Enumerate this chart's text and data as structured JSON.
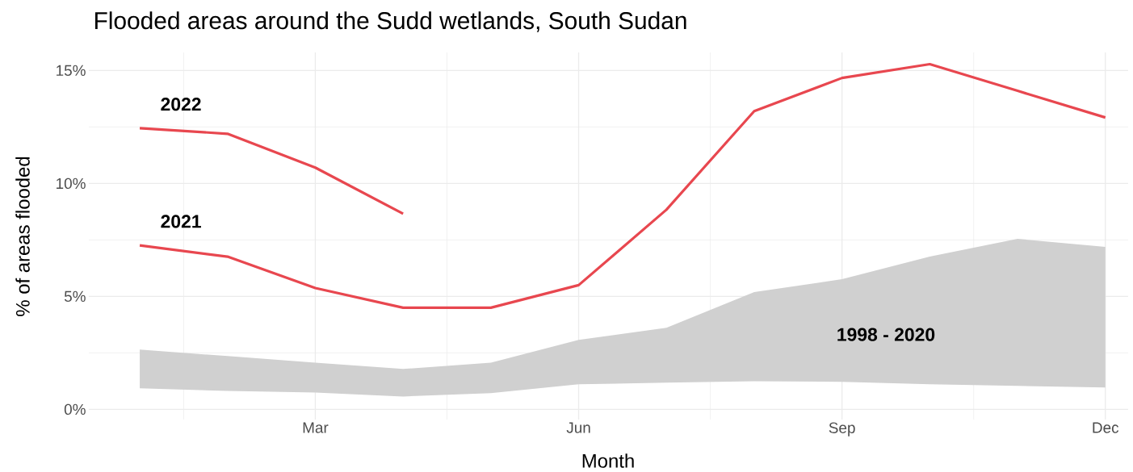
{
  "chart_data": {
    "type": "line",
    "title": "Flooded areas around the Sudd wetlands, South Sudan",
    "xlabel": "Month",
    "ylabel": "% of areas flooded",
    "categories": [
      null,
      null,
      "Mar",
      null,
      null,
      "Jun",
      null,
      null,
      "Sep",
      null,
      null,
      "Dec"
    ],
    "series": [
      {
        "type": "area",
        "color": "#d0d0d0",
        "values": [
          null,
          null,
          null,
          null,
          null,
          null,
          null,
          null,
          null,
          null,
          null,
          null
        ],
        "lower": [
          0.93,
          0.82,
          0.75,
          0.57,
          0.72,
          1.11,
          1.18,
          1.25,
          1.22,
          1.11,
          1.04,
          0.97
        ],
        "upper": [
          2.65,
          2.36,
          2.07,
          1.79,
          2.07,
          3.08,
          3.61,
          5.19,
          5.76,
          6.76,
          7.55,
          7.19
        ]
      },
      {
        "name": "2021",
        "color": "#e8474f",
        "values": [
          7.26,
          6.76,
          5.37,
          4.5,
          4.5,
          5.5,
          8.84,
          13.2,
          14.67,
          15.28,
          14.1,
          12.92
        ]
      },
      {
        "name": "2022",
        "color": "#e8474f",
        "values": [
          12.45,
          12.2,
          10.7,
          8.66,
          null,
          null,
          null,
          null,
          null,
          null,
          null,
          null
        ]
      }
    ],
    "ylim": [
      -0.45,
      15.8
    ],
    "yticks": [
      {
        "value": 0,
        "label": "0%"
      },
      {
        "value": 2.5,
        "label": null
      },
      {
        "value": 5,
        "label": "5%"
      },
      {
        "value": 7.5,
        "label": null
      },
      {
        "value": 10,
        "label": "10%"
      },
      {
        "value": 12.5,
        "label": null
      },
      {
        "value": 15,
        "label": "15%"
      }
    ],
    "annotations": [
      "1998 - 2020"
    ],
    "grid": true
  }
}
